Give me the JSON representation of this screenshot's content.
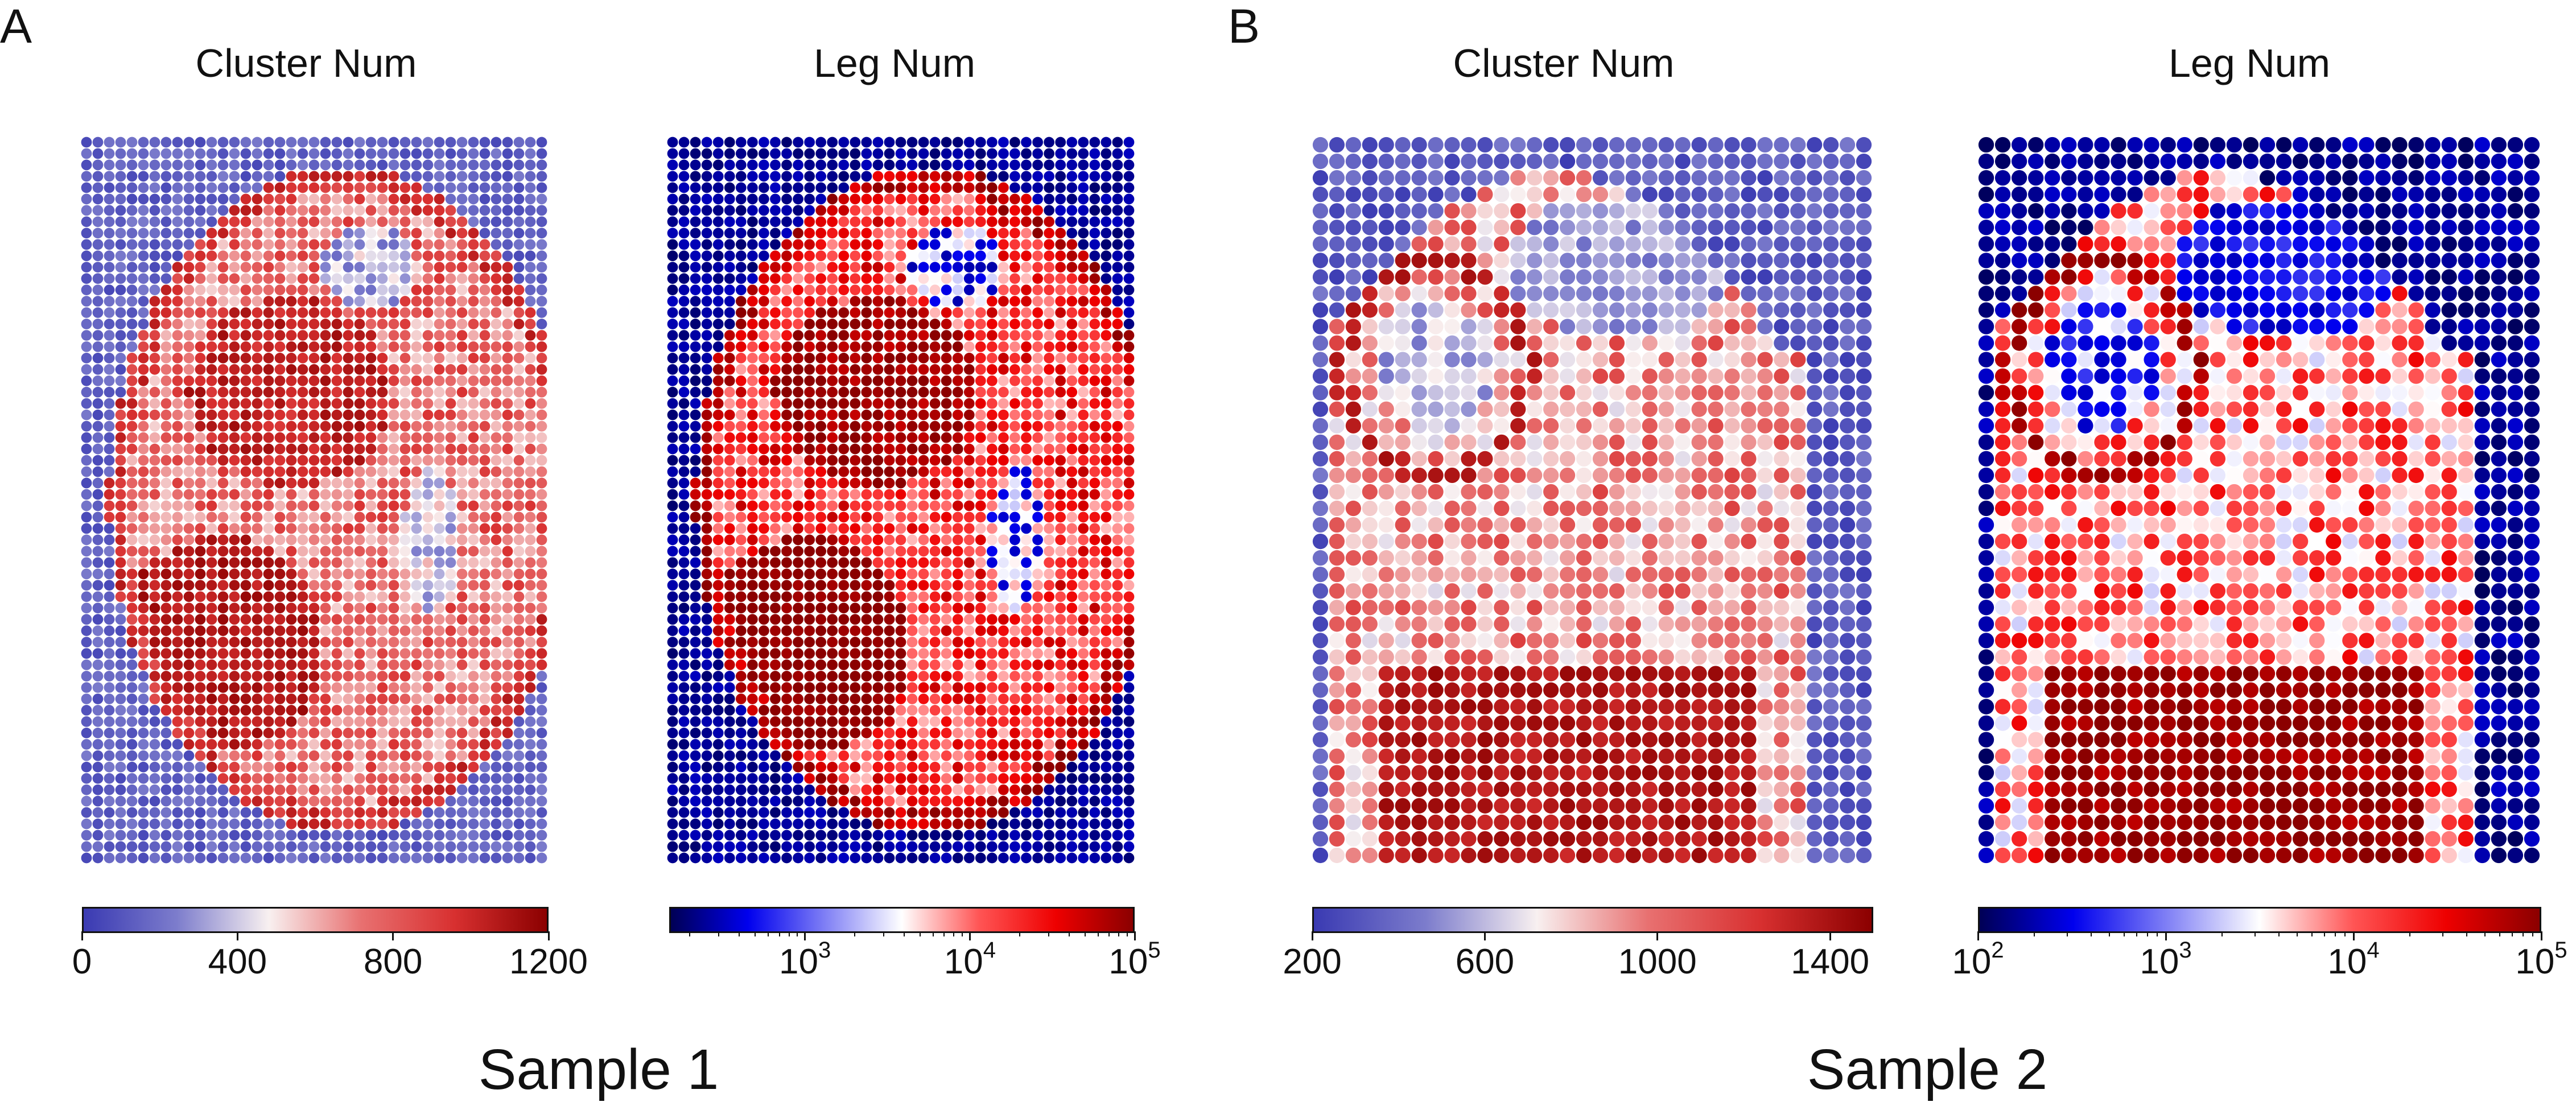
{
  "figure": {
    "panel_a_letter": "A",
    "panel_b_letter": "B",
    "sample_1_label": "Sample 1",
    "sample_2_label": "Sample 2"
  },
  "colors": {
    "diverging_linear": [
      "#3a3ab2",
      "#7c7ccc",
      "#f8f0f0",
      "#e87070",
      "#d83030",
      "#8b0000"
    ],
    "diverging_log": [
      "#000055",
      "#0000ee",
      "#7f7ff5",
      "#ffffff",
      "#ff5555",
      "#ee0000",
      "#8b0000"
    ]
  },
  "chart_data": [
    {
      "type": "heatmap",
      "title": "Cluster Num",
      "grid": {
        "columns": 41,
        "rows": 64
      },
      "color_scale": "linear",
      "colorbar": {
        "range": [
          0,
          1200
        ],
        "ticks": [
          0,
          400,
          800,
          1200
        ],
        "tick_labels": [
          "0",
          "400",
          "800",
          "1200"
        ]
      }
    },
    {
      "type": "heatmap",
      "title": "Leg Num",
      "grid": {
        "columns": 41,
        "rows": 64
      },
      "color_scale": "log",
      "colorbar": {
        "range": [
          150,
          100000
        ],
        "ticks": [
          1000,
          10000,
          100000
        ],
        "tick_labels": [
          {
            "base": "10",
            "exp": "3"
          },
          {
            "base": "10",
            "exp": "4"
          },
          {
            "base": "10",
            "exp": "5"
          }
        ]
      }
    },
    {
      "type": "heatmap",
      "title": "Cluster Num",
      "grid": {
        "columns": 34,
        "rows": 44
      },
      "color_scale": "linear",
      "colorbar": {
        "range": [
          200,
          1500
        ],
        "ticks": [
          200,
          600,
          1000,
          1400
        ],
        "tick_labels": [
          "200",
          "600",
          "1000",
          "1400"
        ]
      }
    },
    {
      "type": "heatmap",
      "title": "Leg Num",
      "grid": {
        "columns": 34,
        "rows": 44
      },
      "color_scale": "log",
      "colorbar": {
        "range": [
          100,
          100000
        ],
        "ticks": [
          100,
          1000,
          10000,
          100000
        ],
        "tick_labels": [
          {
            "base": "10",
            "exp": "2"
          },
          {
            "base": "10",
            "exp": "3"
          },
          {
            "base": "10",
            "exp": "4"
          },
          {
            "base": "10",
            "exp": "5"
          }
        ]
      }
    }
  ]
}
